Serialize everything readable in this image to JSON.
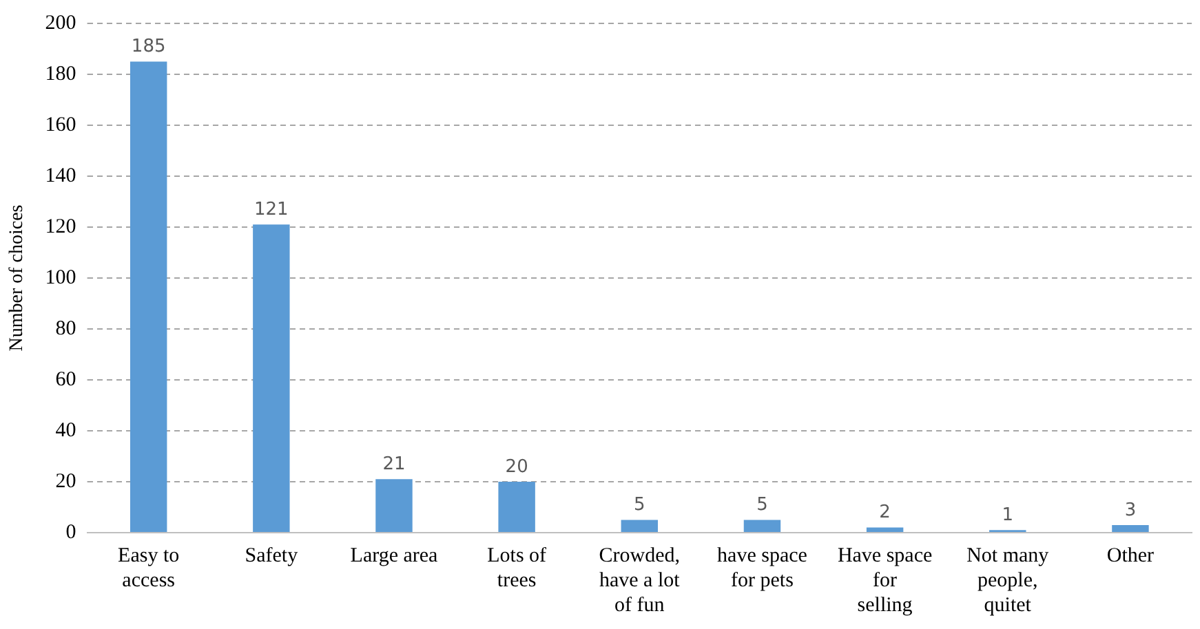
{
  "chart_data": {
    "type": "bar",
    "ylabel": "Number of choices",
    "categories": [
      "Easy to access",
      "Safety",
      "Large area",
      "Lots of trees",
      "Crowded, have a lot of fun",
      "have space for pets",
      "Have space for selling",
      "Not many people, quitet",
      "Other"
    ],
    "values": [
      185,
      121,
      21,
      20,
      5,
      5,
      2,
      1,
      3
    ],
    "color": "#5b9bd5",
    "ylim": [
      0,
      200
    ],
    "yticks": [
      0,
      20,
      40,
      60,
      80,
      100,
      120,
      140,
      160,
      180,
      200
    ],
    "grid": "y",
    "data_labels": true,
    "legend": false
  }
}
